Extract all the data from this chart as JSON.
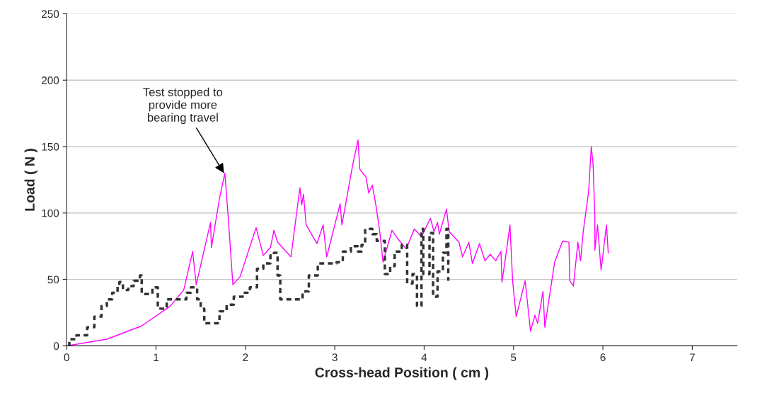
{
  "chart_data": {
    "type": "line",
    "xlabel": "Cross-head Position ( cm )",
    "ylabel": "Load ( N )",
    "xlim": [
      0,
      7.5
    ],
    "xticks": [
      0,
      1,
      2,
      3,
      4,
      5,
      6,
      7
    ],
    "ylim": [
      0,
      250
    ],
    "yticks": [
      0,
      50,
      100,
      150,
      200,
      250
    ],
    "grid": "y",
    "legend": false,
    "series": [
      {
        "color": "#ff00ff",
        "line_style": "solid",
        "x": [
          0,
          0.45,
          0.84,
          1.16,
          1.31,
          1.41,
          1.45,
          1.61,
          1.62,
          1.71,
          1.77,
          1.81,
          1.86,
          1.94,
          2.12,
          2.2,
          2.28,
          2.32,
          2.36,
          2.51,
          2.61,
          2.63,
          2.65,
          2.68,
          2.8,
          2.87,
          2.91,
          3.06,
          3.08,
          3.2,
          3.26,
          3.28,
          3.35,
          3.38,
          3.42,
          3.46,
          3.5,
          3.54,
          3.64,
          3.7,
          3.8,
          3.89,
          3.97,
          4.07,
          4.11,
          4.15,
          4.17,
          4.25,
          4.28,
          4.39,
          4.43,
          4.5,
          4.54,
          4.62,
          4.68,
          4.74,
          4.8,
          4.86,
          4.87,
          4.91,
          4.96,
          4.99,
          5.03,
          5.13,
          5.19,
          5.24,
          5.27,
          5.33,
          5.35,
          5.46,
          5.55,
          5.62,
          5.63,
          5.67,
          5.72,
          5.75,
          5.78,
          5.84,
          5.87,
          5.89,
          5.91,
          5.91,
          5.94,
          5.98,
          6.04,
          6.06
        ],
        "values": [
          0,
          5,
          15,
          30,
          42,
          71,
          46,
          93,
          74,
          111,
          130,
          95,
          46,
          52,
          89,
          68,
          74,
          87,
          78,
          67,
          119,
          106,
          114,
          91,
          77,
          91,
          67,
          107,
          91,
          136,
          155,
          133,
          127,
          115,
          121,
          106,
          88,
          63,
          87,
          81,
          73,
          88,
          82,
          96,
          86,
          93,
          84,
          103,
          86,
          78,
          67,
          78,
          62,
          77,
          64,
          69,
          64,
          71,
          48,
          66,
          91,
          49,
          22,
          49,
          11,
          23,
          17,
          41,
          14,
          63,
          79,
          78,
          49,
          45,
          78,
          64,
          86,
          116,
          150,
          137,
          98,
          72,
          91,
          57,
          91,
          70
        ]
      },
      {
        "type": "step",
        "color": "#333333",
        "line_style": "dashed",
        "x": [
          0.02,
          0.03,
          0.11,
          0.23,
          0.31,
          0.39,
          0.45,
          0.51,
          0.57,
          0.59,
          0.63,
          0.69,
          0.75,
          0.82,
          0.84,
          0.96,
          1.02,
          1.12,
          1.34,
          1.39,
          1.46,
          1.5,
          1.54,
          1.71,
          1.79,
          1.87,
          1.97,
          2.05,
          2.13,
          2.2,
          2.28,
          2.32,
          2.36,
          2.39,
          2.57,
          2.64,
          2.71,
          2.81,
          2.91,
          3.02,
          3.09,
          3.18,
          3.26,
          3.3,
          3.34,
          3.42,
          3.47,
          3.56,
          3.62,
          3.67,
          3.75,
          3.81,
          3.87,
          3.92,
          3.97,
          3.99,
          4.06,
          4.1,
          4.15,
          4.21,
          4.25,
          4.27
        ],
        "values": [
          0,
          5,
          8,
          14,
          22,
          30,
          35,
          40,
          45,
          48,
          42,
          45,
          49,
          53,
          39,
          44,
          28,
          35,
          40,
          44,
          35,
          28,
          17,
          26,
          31,
          37,
          40,
          44,
          58,
          62,
          68,
          70,
          53,
          35,
          35,
          41,
          53,
          62,
          62,
          63,
          71,
          75,
          71,
          76,
          88,
          84,
          79,
          54,
          60,
          71,
          76,
          47,
          54,
          30,
          88,
          54,
          85,
          37,
          56,
          70,
          88,
          49
        ]
      }
    ],
    "annotations": [
      {
        "text": "Test stopped to\nprovide more\nbearing travel",
        "x": 1.76,
        "y": 130
      }
    ]
  }
}
